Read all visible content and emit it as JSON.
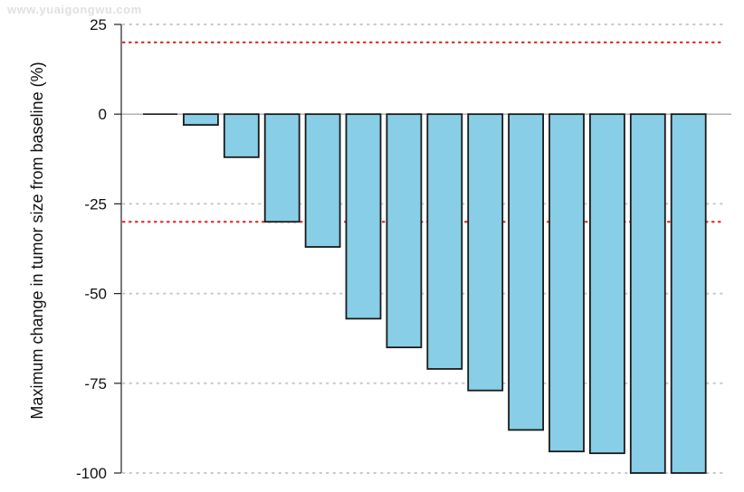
{
  "watermark": "www.yuaigongwu.com",
  "chart_data": {
    "type": "bar",
    "title": "",
    "xlabel": "",
    "ylabel": "Maximum change in tumor size from baseline (%)",
    "ylim": [
      -100,
      25
    ],
    "yticks": [
      25,
      0,
      -25,
      -50,
      -75,
      -100
    ],
    "ytick_labels": [
      "25",
      "0",
      "-25",
      "-50",
      "-75",
      "-100"
    ],
    "grid": "horizontal dotted at y ticks",
    "reference_lines": [
      20,
      -30
    ],
    "values": [
      0,
      -3,
      -12,
      -30,
      -37,
      -57,
      -65,
      -71,
      -77,
      -88,
      -94,
      -94.5,
      -100,
      -100
    ],
    "colors": {
      "bar_fill": "#87CEE6",
      "bar_stroke": "#1a1a1a",
      "reference_line": "#e0302a",
      "grid": "#c8c8c8",
      "axis": "#222222"
    }
  }
}
